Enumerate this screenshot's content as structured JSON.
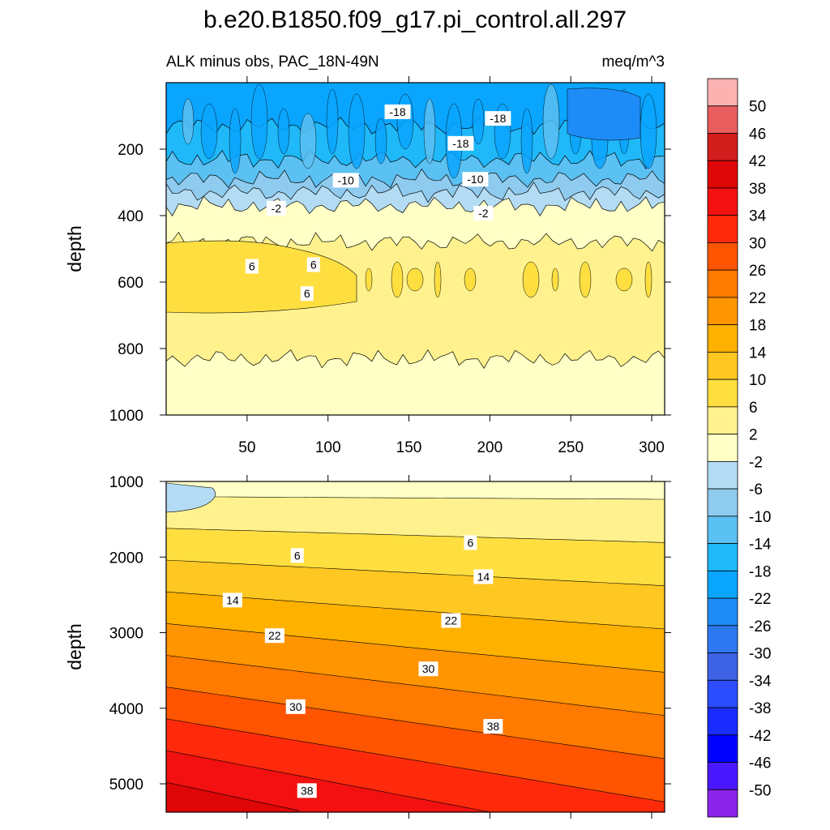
{
  "chart_data": {
    "type": "contour",
    "title": "b.e20.B1850.f09_g17.pi_control.all.297",
    "subtitle_left": "ALK minus obs, PAC_18N-49N",
    "subtitle_right": "meq/m^3",
    "ylabel": "depth",
    "colorbar": {
      "labels": [
        "50",
        "46",
        "42",
        "38",
        "34",
        "30",
        "26",
        "22",
        "18",
        "14",
        "10",
        "6",
        "2",
        "-2",
        "-6",
        "-10",
        "-14",
        "-18",
        "-22",
        "-26",
        "-30",
        "-34",
        "-38",
        "-42",
        "-46",
        "-50"
      ],
      "colors": [
        "#fdb2b2",
        "#e85d5d",
        "#d21d1d",
        "#de0606",
        "#f21010",
        "#ff2a0c",
        "#ff5400",
        "#ff7a00",
        "#ff9500",
        "#ffb100",
        "#ffc722",
        "#ffdf40",
        "#fff28e",
        "#ffffc6",
        "#b3dcf4",
        "#8fcbee",
        "#5bc0f2",
        "#1fb9f9",
        "#0aa5ff",
        "#1e8cf6",
        "#2d78f0",
        "#3d62e6",
        "#2b4cff",
        "#1a2cff",
        "#0000ff",
        "#4a18ff",
        "#8a24e8"
      ]
    },
    "panels": [
      {
        "name": "upper",
        "xlim": [
          0,
          308
        ],
        "ylim": [
          0,
          1000
        ],
        "xticks": [
          "50",
          "100",
          "150",
          "200",
          "250",
          "300"
        ],
        "xtick_values": [
          50,
          100,
          150,
          200,
          250,
          300
        ],
        "yticks": [
          "200",
          "400",
          "600",
          "800",
          "1000"
        ],
        "ytick_values": [
          200,
          400,
          600,
          800,
          1000
        ],
        "bands": [
          {
            "from": 0,
            "to": 130,
            "value": -20
          },
          {
            "from": 130,
            "to": 230,
            "value": -16
          },
          {
            "from": 230,
            "to": 290,
            "value": -12
          },
          {
            "from": 290,
            "to": 330,
            "value": -8
          },
          {
            "from": 330,
            "to": 370,
            "value": -4
          },
          {
            "from": 370,
            "to": 480,
            "value": 0
          },
          {
            "from": 480,
            "to": 830,
            "value": 4
          },
          {
            "from": 830,
            "to": 1000,
            "value": 0
          }
        ],
        "contour_labels": [
          {
            "text": "-18",
            "x": 143,
            "y": 90
          },
          {
            "text": "-18",
            "x": 205,
            "y": 110
          },
          {
            "text": "-18",
            "x": 182,
            "y": 185
          },
          {
            "text": "-10",
            "x": 111,
            "y": 296
          },
          {
            "text": "-10",
            "x": 191,
            "y": 293
          },
          {
            "text": "-2",
            "x": 68,
            "y": 380
          },
          {
            "text": "-2",
            "x": 196,
            "y": 395
          },
          {
            "text": "6",
            "x": 53,
            "y": 555
          },
          {
            "text": "6",
            "x": 91,
            "y": 550
          },
          {
            "text": "6",
            "x": 87,
            "y": 637
          }
        ]
      },
      {
        "name": "lower",
        "xlim": [
          0,
          308
        ],
        "ylim": [
          1000,
          5375
        ],
        "yticks": [
          "1000",
          "2000",
          "3000",
          "4000",
          "5000"
        ],
        "ytick_values": [
          1000,
          2000,
          3000,
          4000,
          5000
        ],
        "contour_levels": [
          2,
          6,
          10,
          14,
          18,
          22,
          26,
          30,
          34,
          38,
          42,
          46,
          50
        ],
        "contour_labels": [
          {
            "text": "6",
            "x": 188,
            "y": 1820
          },
          {
            "text": "6",
            "x": 81,
            "y": 1990
          },
          {
            "text": "14",
            "x": 196,
            "y": 2270
          },
          {
            "text": "14",
            "x": 41,
            "y": 2580
          },
          {
            "text": "22",
            "x": 176,
            "y": 2850
          },
          {
            "text": "22",
            "x": 67,
            "y": 3050
          },
          {
            "text": "30",
            "x": 162,
            "y": 3490
          },
          {
            "text": "30",
            "x": 80,
            "y": 3990
          },
          {
            "text": "38",
            "x": 202,
            "y": 4250
          },
          {
            "text": "38",
            "x": 87,
            "y": 5100
          }
        ]
      }
    ]
  }
}
